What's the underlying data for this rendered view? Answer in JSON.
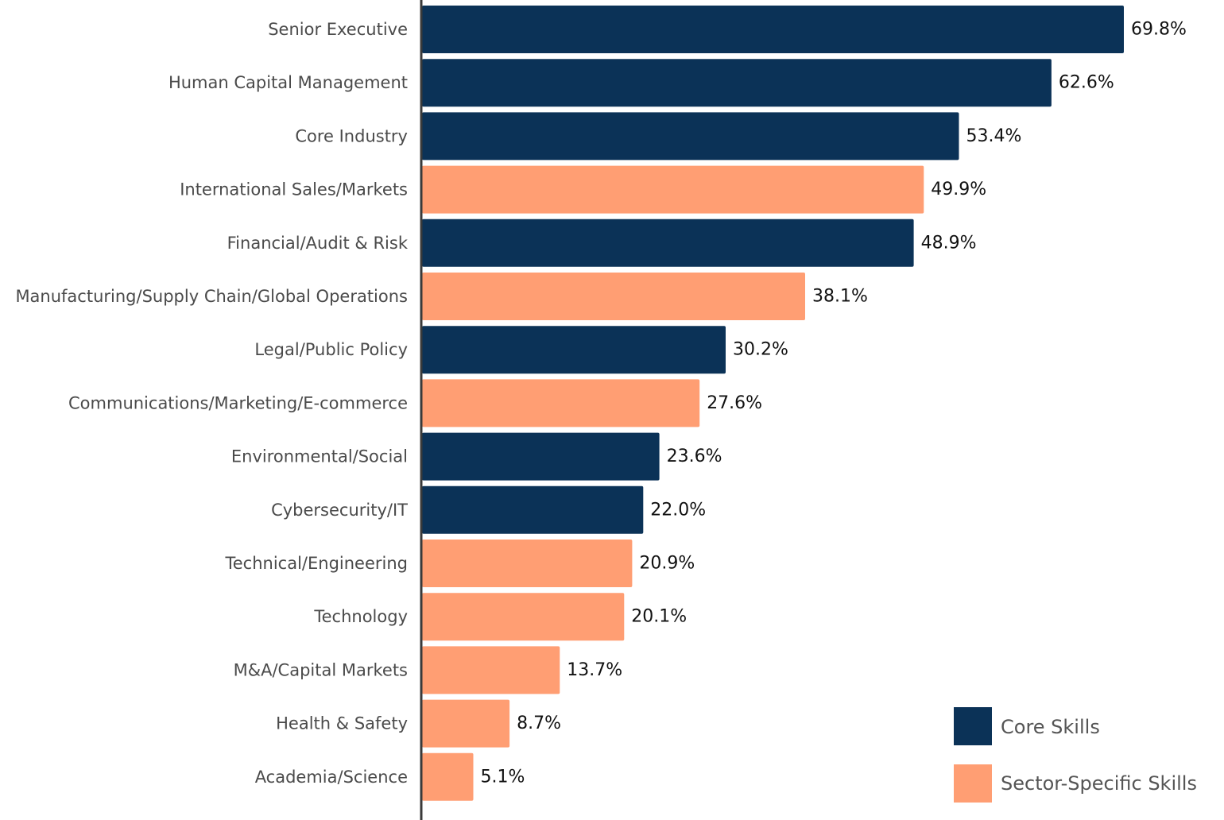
{
  "chart_data": {
    "type": "bar",
    "orientation": "horizontal",
    "title": "",
    "xlabel": "",
    "ylabel": "",
    "xlim": [
      0,
      69.8
    ],
    "grid": false,
    "value_suffix": "%",
    "categories": [
      "Senior Executive",
      "Human Capital Management",
      "Core Industry",
      "International Sales/Markets",
      "Financial/Audit & Risk",
      "Manufacturing/Supply Chain/Global Operations",
      "Legal/Public Policy",
      "Communications/Marketing/E-commerce",
      "Environmental/Social",
      "Cybersecurity/IT",
      "Technical/Engineering",
      "Technology",
      "M&A/Capital Markets",
      "Health & Safety",
      "Academia/Science"
    ],
    "values": [
      69.8,
      62.6,
      53.4,
      49.9,
      48.9,
      38.1,
      30.2,
      27.6,
      23.6,
      22.0,
      20.9,
      20.1,
      13.7,
      8.7,
      5.1
    ],
    "value_labels": [
      "69.8%",
      "62.6%",
      "53.4%",
      "49.9%",
      "48.9%",
      "38.1%",
      "30.2%",
      "27.6%",
      "23.6%",
      "22.0%",
      "20.9%",
      "20.1%",
      "13.7%",
      "8.7%",
      "5.1%"
    ],
    "groups": [
      "core",
      "core",
      "core",
      "sector",
      "core",
      "sector",
      "core",
      "sector",
      "core",
      "core",
      "sector",
      "sector",
      "sector",
      "sector",
      "sector"
    ],
    "legend": {
      "position": "bottom-right",
      "items": [
        {
          "key": "core",
          "label": "Core Skills",
          "color": "#0b3257"
        },
        {
          "key": "sector",
          "label": "Sector-Specific Skills",
          "color": "#ff9e73"
        }
      ]
    },
    "axis_color": "#3a3a3a"
  }
}
